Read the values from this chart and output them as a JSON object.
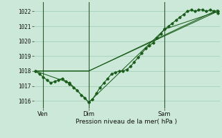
{
  "xlabel": "Pression niveau de la mer( hPa )",
  "bg_color": "#cce8d8",
  "grid_color": "#99ccb0",
  "line_color": "#1a5c1a",
  "ylim": [
    1015.5,
    1022.6
  ],
  "xlim": [
    -0.5,
    48.5
  ],
  "xtick_labels": [
    "Ven",
    "Dim",
    "Sam"
  ],
  "xtick_positions": [
    2,
    14,
    34
  ],
  "ytick_values": [
    1016,
    1017,
    1018,
    1019,
    1020,
    1021,
    1022
  ],
  "vline_positions": [
    2,
    14,
    34
  ],
  "series1_x": [
    0,
    1,
    2,
    3,
    4,
    5,
    6,
    7,
    8,
    9,
    10,
    11,
    12,
    13,
    14,
    15,
    16,
    17,
    18,
    19,
    20,
    21,
    22,
    23,
    24,
    25,
    26,
    27,
    28,
    29,
    30,
    31,
    32,
    33,
    34,
    35,
    36,
    37,
    38,
    39,
    40,
    41,
    42,
    43,
    44,
    45,
    46,
    47,
    48
  ],
  "series1_y": [
    1018.0,
    1017.8,
    1017.6,
    1017.4,
    1017.2,
    1017.3,
    1017.4,
    1017.5,
    1017.3,
    1017.1,
    1016.9,
    1016.7,
    1016.4,
    1016.2,
    1015.9,
    1016.1,
    1016.5,
    1016.9,
    1017.2,
    1017.5,
    1017.8,
    1017.9,
    1018.0,
    1018.0,
    1018.1,
    1018.3,
    1018.6,
    1018.9,
    1019.2,
    1019.5,
    1019.7,
    1019.9,
    1020.2,
    1020.5,
    1020.8,
    1021.0,
    1021.2,
    1021.4,
    1021.6,
    1021.8,
    1022.0,
    1022.1,
    1022.0,
    1022.1,
    1022.1,
    1022.0,
    1022.1,
    1022.0,
    1021.9
  ],
  "series2_x": [
    0,
    14,
    48
  ],
  "series2_y": [
    1018.0,
    1018.0,
    1022.0
  ],
  "series3_x": [
    0,
    14,
    48
  ],
  "series3_y": [
    1018.0,
    1018.0,
    1022.1
  ],
  "series4_x": [
    0,
    9,
    14,
    34,
    48
  ],
  "series4_y": [
    1018.0,
    1017.2,
    1015.9,
    1020.8,
    1022.0
  ]
}
